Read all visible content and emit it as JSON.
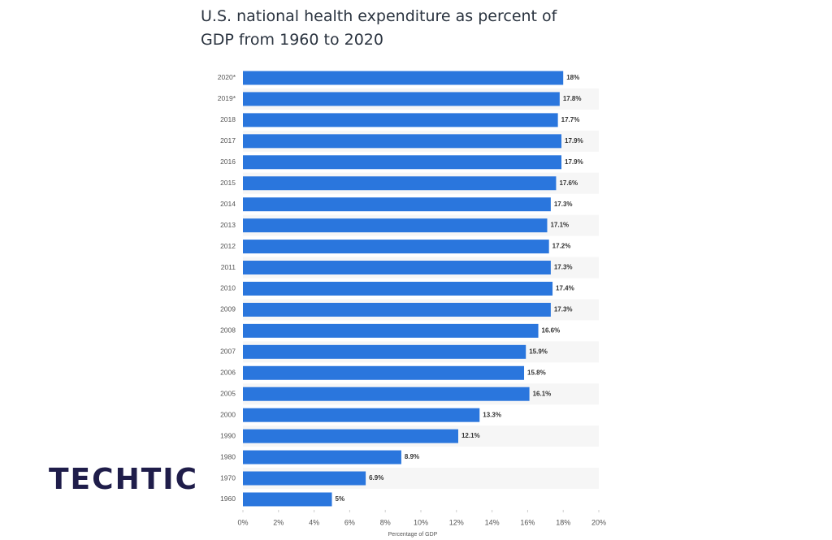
{
  "chart_data": {
    "type": "hbar",
    "title": "U.S. national health expenditure as percent of GDP from 1960 to 2020",
    "categories": [
      "2020*",
      "2019*",
      "2018",
      "2017",
      "2016",
      "2015",
      "2014",
      "2013",
      "2012",
      "2011",
      "2010",
      "2009",
      "2008",
      "2007",
      "2006",
      "2005",
      "2000",
      "1990",
      "1980",
      "1970",
      "1960"
    ],
    "values": [
      18,
      17.8,
      17.7,
      17.9,
      17.9,
      17.6,
      17.3,
      17.1,
      17.2,
      17.3,
      17.4,
      17.3,
      16.6,
      15.9,
      15.8,
      16.1,
      13.3,
      12.1,
      8.9,
      6.9,
      5
    ],
    "value_labels": [
      "18%",
      "17.8%",
      "17.7%",
      "17.9%",
      "17.9%",
      "17.6%",
      "17.3%",
      "17.1%",
      "17.2%",
      "17.3%",
      "17.4%",
      "17.3%",
      "16.6%",
      "15.9%",
      "15.8%",
      "16.1%",
      "13.3%",
      "12.1%",
      "8.9%",
      "6.9%",
      "5%"
    ],
    "color": "#2a76dd",
    "xlim": [
      0,
      20
    ],
    "xticks": [
      {
        "value": 0,
        "label": "0%"
      },
      {
        "value": 2,
        "label": "2%"
      },
      {
        "value": 4,
        "label": "4%"
      },
      {
        "value": 6,
        "label": "6%"
      },
      {
        "value": 8,
        "label": "8%"
      },
      {
        "value": 10,
        "label": "10%"
      },
      {
        "value": 12,
        "label": "12%"
      },
      {
        "value": 14,
        "label": "14%"
      },
      {
        "value": 16,
        "label": "16%"
      },
      {
        "value": 18,
        "label": "18%"
      },
      {
        "value": 20,
        "label": "20%"
      }
    ],
    "xlabel": "Percentage of GDP"
  },
  "logo": "TECHTIC"
}
